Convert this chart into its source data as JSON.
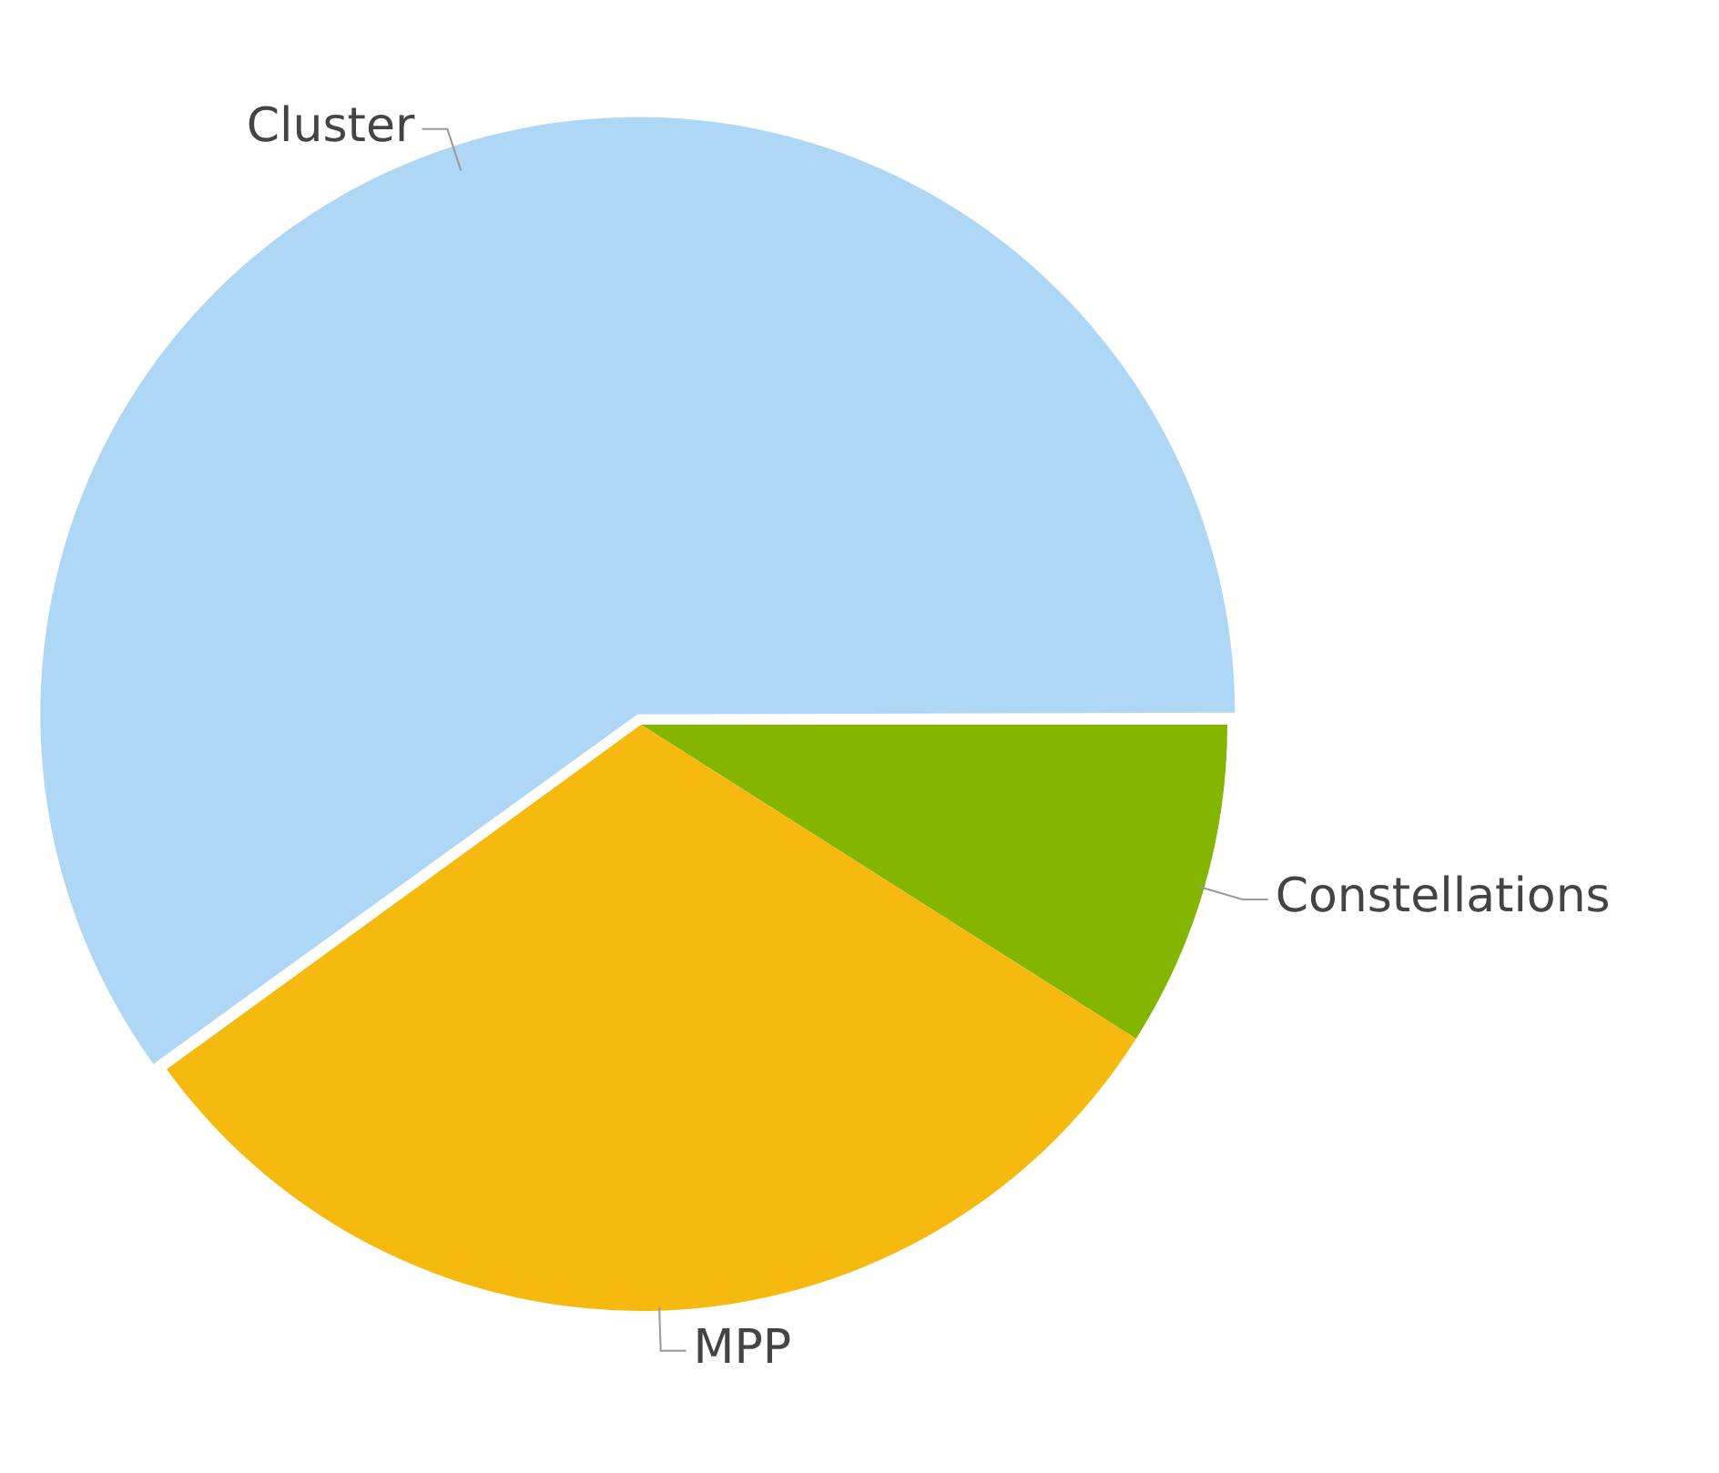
{
  "chart_data": {
    "type": "pie",
    "categories": [
      "Constellations",
      "MPP",
      "Cluster"
    ],
    "values": [
      9,
      31,
      60
    ],
    "colors": [
      "#84b500",
      "#f5b90f",
      "#aed6f5"
    ],
    "legend": false
  }
}
